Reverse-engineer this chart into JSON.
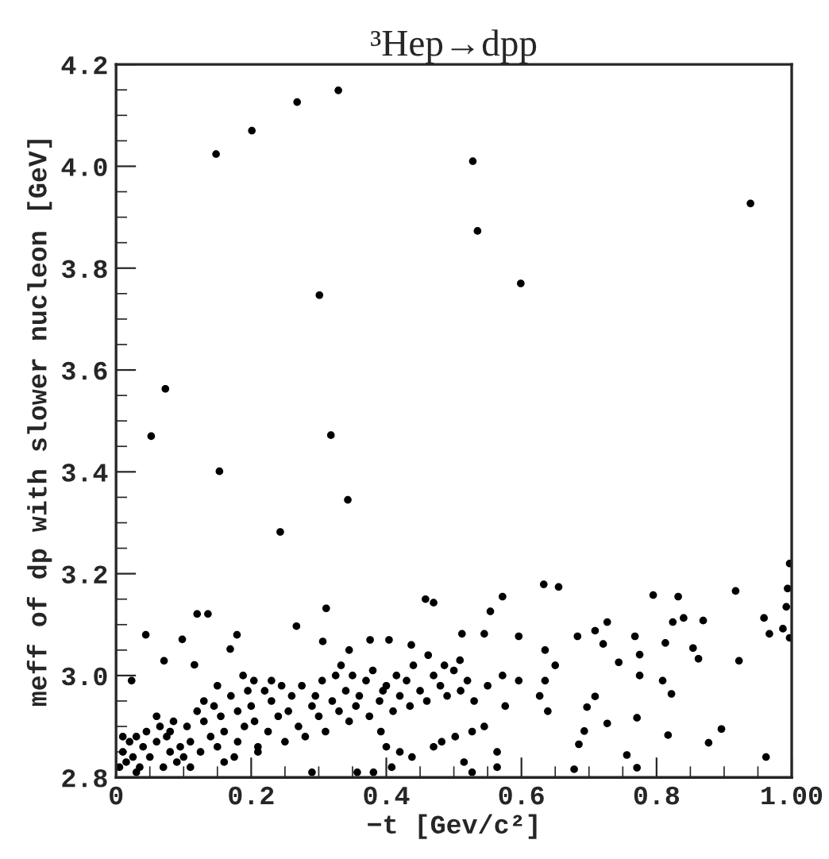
{
  "chart_data": {
    "type": "scatter",
    "title": "³Hep→dpp",
    "xlabel": "−t [Gev/c²]",
    "ylabel": "meff of dp with slower nucleon [GeV]",
    "xlim": [
      0,
      1.0
    ],
    "xticks": [
      0,
      0.2,
      0.4,
      0.6,
      0.8,
      {
        "value": 1.0,
        "label": "1.00"
      }
    ],
    "ylim": [
      2.8,
      4.2
    ],
    "yticks": [
      2.8,
      {
        "value": 3.0,
        "label": "3.0"
      },
      3.2,
      3.4,
      3.6,
      3.8,
      {
        "value": 4.0,
        "label": "4.0"
      },
      4.2
    ],
    "grid": false,
    "legend": false,
    "marker": "circle",
    "series": [
      {
        "color": "#000000",
        "x": [
          0.148,
          0.201,
          0.268,
          0.329,
          0.528,
          0.535,
          0.599,
          0.939,
          0.301,
          0.073,
          0.052,
          0.318,
          0.153,
          0.343,
          0.243,
          0.997,
          0.572,
          0.633,
          0.655,
          0.795,
          0.832,
          0.917,
          0.994,
          0.992,
          0.458,
          0.47,
          0.554,
          0.311,
          0.12,
          0.136,
          0.267,
          0.044,
          0.098,
          0.179,
          0.306,
          0.071,
          0.116,
          0.169,
          0.023,
          0.512,
          0.545,
          0.596,
          0.683,
          0.709,
          0.727,
          0.768,
          0.824,
          0.84,
          0.869,
          0.959,
          0.967,
          0.987,
          0.997,
          0.922,
          0.854,
          0.862,
          0.813,
          0.775,
          0.721,
          0.744,
          0.775,
          0.809,
          0.822,
          0.709,
          0.697,
          0.727,
          0.693,
          0.685,
          0.817,
          0.877,
          0.896,
          0.771,
          0.756,
          0.771,
          0.678,
          0.962,
          0.635,
          0.65,
          0.635,
          0.627,
          0.639,
          0.596,
          0.572,
          0.576,
          0.545,
          0.527,
          0.502,
          0.515,
          0.527,
          0.564,
          0.564,
          0.47,
          0.482,
          0.438,
          0.4,
          0.42,
          0.408,
          0.357,
          0.381,
          0.29,
          0.392,
          0.462,
          0.486,
          0.509,
          0.376,
          0.404,
          0.437,
          0.345,
          0.333,
          0.204,
          0.15,
          0.188,
          0.005,
          0.01,
          0.015,
          0.02,
          0.025,
          0.03,
          0.035,
          0.04,
          0.045,
          0.01,
          0.03,
          0.05,
          0.06,
          0.065,
          0.07,
          0.075,
          0.08,
          0.085,
          0.09,
          0.095,
          0.06,
          0.08,
          0.1,
          0.105,
          0.11,
          0.12,
          0.125,
          0.13,
          0.14,
          0.145,
          0.11,
          0.13,
          0.15,
          0.155,
          0.16,
          0.17,
          0.175,
          0.18,
          0.19,
          0.195,
          0.16,
          0.18,
          0.2,
          0.205,
          0.21,
          0.22,
          0.225,
          0.23,
          0.24,
          0.245,
          0.21,
          0.23,
          0.25,
          0.255,
          0.26,
          0.27,
          0.275,
          0.28,
          0.29,
          0.295,
          0.3,
          0.305,
          0.31,
          0.32,
          0.325,
          0.33,
          0.34,
          0.345,
          0.35,
          0.355,
          0.36,
          0.37,
          0.375,
          0.38,
          0.39,
          0.395,
          0.4,
          0.41,
          0.415,
          0.42,
          0.43,
          0.435,
          0.44,
          0.45,
          0.46,
          0.47,
          0.48,
          0.49,
          0.5,
          0.51,
          0.52,
          0.53,
          0.55
        ],
        "values": [
          4.024,
          4.07,
          4.126,
          4.149,
          4.01,
          3.873,
          3.77,
          3.927,
          3.747,
          3.563,
          3.47,
          3.472,
          3.401,
          3.345,
          3.282,
          3.22,
          3.155,
          3.179,
          3.174,
          3.158,
          3.155,
          3.166,
          3.171,
          3.135,
          3.15,
          3.143,
          3.126,
          3.132,
          3.121,
          3.121,
          3.097,
          3.08,
          3.071,
          3.08,
          3.067,
          3.029,
          3.021,
          3.052,
          2.99,
          3.082,
          3.082,
          3.077,
          3.077,
          3.088,
          3.105,
          3.077,
          3.105,
          3.113,
          3.108,
          3.113,
          3.082,
          3.092,
          3.074,
          3.029,
          3.054,
          3.033,
          3.064,
          3.041,
          3.062,
          3.026,
          3.0,
          2.99,
          2.964,
          2.959,
          2.938,
          2.906,
          2.891,
          2.865,
          2.883,
          2.868,
          2.895,
          2.917,
          2.844,
          2.819,
          2.816,
          2.84,
          3.05,
          3.02,
          2.99,
          2.96,
          2.93,
          2.99,
          3.0,
          2.94,
          2.9,
          2.89,
          2.88,
          2.83,
          2.81,
          2.85,
          2.82,
          2.86,
          2.87,
          2.84,
          2.86,
          2.85,
          2.82,
          2.81,
          2.81,
          2.81,
          2.89,
          3.04,
          3.02,
          3.03,
          3.07,
          3.07,
          3.06,
          3.05,
          3.02,
          2.99,
          2.98,
          3.0,
          2.82,
          2.85,
          2.83,
          2.87,
          2.84,
          2.88,
          2.82,
          2.86,
          2.89,
          2.88,
          2.81,
          2.84,
          2.87,
          2.9,
          2.82,
          2.88,
          2.85,
          2.91,
          2.83,
          2.86,
          2.92,
          2.89,
          2.84,
          2.9,
          2.87,
          2.93,
          2.85,
          2.91,
          2.88,
          2.94,
          2.82,
          2.95,
          2.86,
          2.92,
          2.89,
          2.96,
          2.84,
          2.93,
          2.9,
          2.97,
          2.83,
          2.87,
          2.94,
          2.91,
          2.86,
          2.97,
          2.89,
          2.95,
          2.92,
          2.98,
          2.85,
          2.99,
          2.87,
          2.93,
          2.96,
          2.9,
          2.98,
          2.88,
          2.94,
          2.96,
          2.92,
          2.99,
          2.89,
          2.95,
          3.0,
          2.93,
          2.97,
          2.91,
          3.0,
          2.94,
          2.96,
          2.99,
          2.92,
          3.01,
          2.95,
          2.97,
          2.98,
          2.93,
          3.0,
          2.96,
          2.99,
          2.94,
          3.02,
          2.97,
          2.95,
          3.0,
          2.98,
          2.96,
          3.01,
          2.97,
          2.99,
          2.95,
          2.98
        ]
      }
    ]
  }
}
